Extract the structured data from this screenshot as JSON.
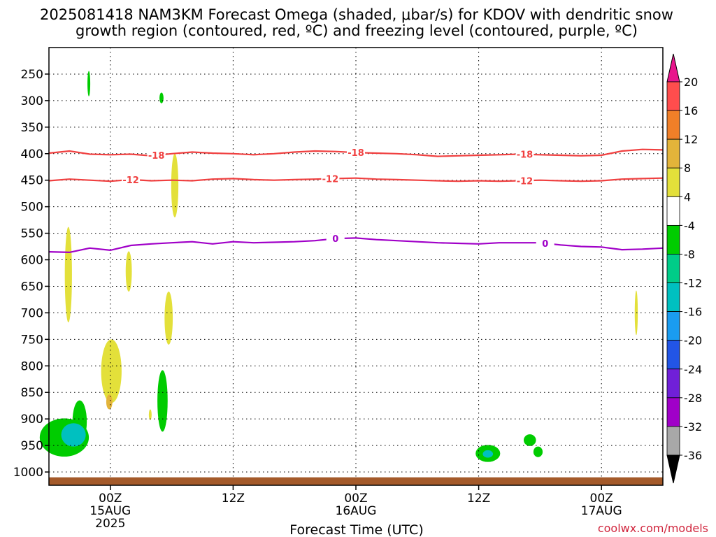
{
  "chart_data": {
    "type": "heatmap",
    "title_lines": [
      "2025081418 NAM3KM Forecast Omega (shaded, μbar/s) for KDOV with dendritic snow",
      "growth region (contoured, red, ºC) and freezing level (contoured, purple, ºC)"
    ],
    "xlabel": "Forecast Time (UTC)",
    "credit": "coolwx.com/models",
    "x_ticks": [
      {
        "hour": 6,
        "label": "00Z",
        "sub": "15AUG",
        "sub2": "2025"
      },
      {
        "hour": 18,
        "label": "12Z",
        "sub": "",
        "sub2": ""
      },
      {
        "hour": 30,
        "label": "00Z",
        "sub": "16AUG",
        "sub2": ""
      },
      {
        "hour": 42,
        "label": "12Z",
        "sub": "",
        "sub2": ""
      },
      {
        "hour": 54,
        "label": "00Z",
        "sub": "17AUG",
        "sub2": ""
      }
    ],
    "x_range_hours": [
      0,
      60
    ],
    "y_ticks": [
      250,
      300,
      350,
      400,
      450,
      500,
      550,
      600,
      650,
      700,
      750,
      800,
      850,
      900,
      950,
      1000
    ],
    "y_range_hpa": [
      200,
      1025
    ],
    "colorbar": {
      "labels": [
        "20",
        "16",
        "12",
        "8",
        "4",
        "-4",
        "-8",
        "-12",
        "-16",
        "-20",
        "-24",
        "-28",
        "-32",
        "-36"
      ],
      "colors": [
        "#ff4d4d",
        "#f07f28",
        "#e3b43a",
        "#e3e03a",
        "#ffffff",
        "#00cc00",
        "#00cc88",
        "#00c0c0",
        "#1a9cf0",
        "#2255e6",
        "#7020d8",
        "#a000c8",
        "#a8a8a8"
      ],
      "top_arrow_color": "#e8158c",
      "bottom_arrow_color": "#000000"
    },
    "contours": [
      {
        "name": "-18",
        "color": "#f04040",
        "points": [
          [
            0,
            399
          ],
          [
            2,
            395
          ],
          [
            4,
            401
          ],
          [
            6,
            402
          ],
          [
            8,
            401
          ],
          [
            10,
            404
          ],
          [
            12,
            400
          ],
          [
            14,
            397
          ],
          [
            16,
            399
          ],
          [
            18,
            400
          ],
          [
            20,
            402
          ],
          [
            22,
            400
          ],
          [
            24,
            397
          ],
          [
            26,
            395
          ],
          [
            28,
            396
          ],
          [
            30,
            398
          ],
          [
            32,
            399
          ],
          [
            34,
            400
          ],
          [
            36,
            402
          ],
          [
            38,
            405
          ],
          [
            40,
            404
          ],
          [
            42,
            403
          ],
          [
            44,
            402
          ],
          [
            46,
            401
          ],
          [
            48,
            402
          ],
          [
            50,
            403
          ],
          [
            52,
            404
          ],
          [
            54,
            403
          ],
          [
            56,
            395
          ],
          [
            58,
            392
          ],
          [
            60,
            393
          ]
        ],
        "labels": [
          [
            10.5,
            "-18"
          ],
          [
            30,
            "-18"
          ],
          [
            46.5,
            "-18"
          ]
        ]
      },
      {
        "name": "-12",
        "color": "#f04040",
        "points": [
          [
            0,
            451
          ],
          [
            2,
            448
          ],
          [
            4,
            450
          ],
          [
            6,
            452
          ],
          [
            8,
            449
          ],
          [
            10,
            451
          ],
          [
            12,
            450
          ],
          [
            14,
            451
          ],
          [
            16,
            448
          ],
          [
            18,
            447
          ],
          [
            20,
            449
          ],
          [
            22,
            450
          ],
          [
            24,
            449
          ],
          [
            26,
            448
          ],
          [
            28,
            447
          ],
          [
            30,
            446
          ],
          [
            32,
            448
          ],
          [
            34,
            449
          ],
          [
            36,
            450
          ],
          [
            38,
            451
          ],
          [
            40,
            452
          ],
          [
            42,
            451
          ],
          [
            44,
            452
          ],
          [
            46,
            451
          ],
          [
            48,
            450
          ],
          [
            50,
            451
          ],
          [
            52,
            452
          ],
          [
            54,
            451
          ],
          [
            56,
            448
          ],
          [
            58,
            447
          ],
          [
            60,
            446
          ]
        ],
        "labels": [
          [
            8,
            "-12"
          ],
          [
            27.5,
            "-12"
          ],
          [
            46.5,
            "-12"
          ]
        ]
      },
      {
        "name": "0",
        "color": "#a000c8",
        "points": [
          [
            0,
            585
          ],
          [
            2,
            586
          ],
          [
            4,
            578
          ],
          [
            6,
            582
          ],
          [
            8,
            573
          ],
          [
            10,
            570
          ],
          [
            12,
            568
          ],
          [
            14,
            566
          ],
          [
            16,
            570
          ],
          [
            18,
            566
          ],
          [
            20,
            568
          ],
          [
            22,
            567
          ],
          [
            24,
            566
          ],
          [
            26,
            564
          ],
          [
            28,
            560
          ],
          [
            30,
            559
          ],
          [
            32,
            562
          ],
          [
            34,
            564
          ],
          [
            36,
            566
          ],
          [
            38,
            568
          ],
          [
            40,
            569
          ],
          [
            42,
            570
          ],
          [
            44,
            568
          ],
          [
            46,
            568
          ],
          [
            48,
            568
          ],
          [
            50,
            572
          ],
          [
            52,
            575
          ],
          [
            54,
            576
          ],
          [
            56,
            581
          ],
          [
            58,
            580
          ],
          [
            60,
            578
          ]
        ],
        "labels": [
          [
            28,
            "0"
          ],
          [
            48.5,
            "0"
          ]
        ]
      }
    ],
    "shaded_regions": [
      {
        "value": -8,
        "color": "#00cc00",
        "cx": 3.9,
        "cy": 268,
        "rx": 0.12,
        "ry": 24
      },
      {
        "value": -8,
        "color": "#00cc00",
        "cx": 11,
        "cy": 295,
        "rx": 0.2,
        "ry": 10
      },
      {
        "value": 8,
        "color": "#e3e03a",
        "cx": 12.3,
        "cy": 460,
        "rx": 0.35,
        "ry": 60
      },
      {
        "value": 8,
        "color": "#e3e03a",
        "cx": 1.9,
        "cy": 628,
        "rx": 0.35,
        "ry": 90
      },
      {
        "value": 8,
        "color": "#e3e03a",
        "cx": 7.8,
        "cy": 622,
        "rx": 0.3,
        "ry": 38
      },
      {
        "value": 8,
        "color": "#e3e03a",
        "cx": 11.7,
        "cy": 710,
        "rx": 0.4,
        "ry": 50
      },
      {
        "value": 8,
        "color": "#e3e03a",
        "cx": 6.1,
        "cy": 810,
        "rx": 1.0,
        "ry": 60
      },
      {
        "value": 12,
        "color": "#e3b43a",
        "cx": 5.9,
        "cy": 868,
        "rx": 0.3,
        "ry": 14
      },
      {
        "value": 8,
        "color": "#e3e03a",
        "cx": 9.9,
        "cy": 892,
        "rx": 0.12,
        "ry": 10
      },
      {
        "value": 8,
        "color": "#e3e03a",
        "cx": 57.4,
        "cy": 700,
        "rx": 0.15,
        "ry": 42
      },
      {
        "value": -8,
        "color": "#00cc00",
        "cx": 11.1,
        "cy": 866,
        "rx": 0.5,
        "ry": 58
      },
      {
        "value": -8,
        "color": "#00cc00",
        "cx": 1.5,
        "cy": 935,
        "rx": 2.4,
        "ry": 36
      },
      {
        "value": -8,
        "color": "#00cc00",
        "cx": 3.0,
        "cy": 905,
        "rx": 0.7,
        "ry": 40
      },
      {
        "value": -12,
        "color": "#00c0c0",
        "cx": 2.4,
        "cy": 930,
        "rx": 1.2,
        "ry": 22
      },
      {
        "value": -8,
        "color": "#00cc00",
        "cx": 42.9,
        "cy": 965,
        "rx": 1.2,
        "ry": 16
      },
      {
        "value": -12,
        "color": "#00c0c0",
        "cx": 42.9,
        "cy": 966,
        "rx": 0.5,
        "ry": 7
      },
      {
        "value": -8,
        "color": "#00cc00",
        "cx": 47.0,
        "cy": 940,
        "rx": 0.6,
        "ry": 11
      },
      {
        "value": -8,
        "color": "#00cc00",
        "cx": 47.8,
        "cy": 962,
        "rx": 0.45,
        "ry": 10
      }
    ],
    "ground_band": {
      "color": "#a45a2a",
      "from_hpa": 1010,
      "to_hpa": 1025
    }
  }
}
